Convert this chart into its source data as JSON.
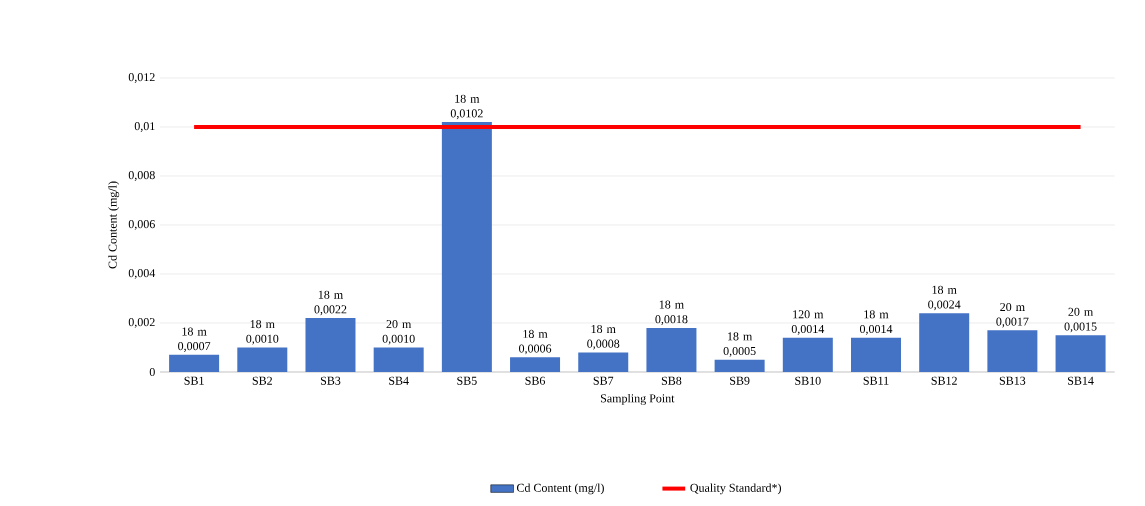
{
  "chart_data": {
    "type": "bar",
    "xlabel": "Sampling Point",
    "ylabel": "Cd Content (mg/l)",
    "categories": [
      "SB1",
      "SB2",
      "SB3",
      "SB4",
      "SB5",
      "SB6",
      "SB7",
      "SB8",
      "SB9",
      "SB10",
      "SB11",
      "SB12",
      "SB13",
      "SB14"
    ],
    "series": [
      {
        "name": "Cd Content (mg/l)",
        "color": "#4472c4",
        "values": [
          0.0007,
          0.001,
          0.0022,
          0.001,
          0.0102,
          0.0006,
          0.0008,
          0.0018,
          0.0005,
          0.0014,
          0.0014,
          0.0024,
          0.0017,
          0.0015
        ],
        "value_labels": [
          "18 m 0,0007",
          "18 m 0,0010",
          "18 m 0,0022",
          "20 m 0,0010",
          "18 m 0,0102",
          "18 m 0,0006",
          "18 m 0,0008",
          "18 m 0,0018",
          "18 m 0,0005",
          "120 m 0,0014",
          "18 m 0,0014",
          "18 m 0,0024",
          "20 m 0,0017",
          "20 m 0,0015"
        ]
      },
      {
        "name": "Quality Standard*)",
        "type": "line",
        "color": "#ff0000",
        "values": [
          0.01,
          0.01,
          0.01,
          0.01,
          0.01,
          0.01,
          0.01,
          0.01,
          0.01,
          0.01,
          0.01,
          0.01,
          0.01,
          0.01
        ]
      }
    ],
    "ylim": [
      0,
      0.012
    ],
    "yticks": [
      0,
      {
        "value": 0.002,
        "label": "0,002"
      },
      {
        "value": 0.004,
        "label": "0,004"
      },
      {
        "value": 0.006,
        "label": "0,006"
      },
      {
        "value": 0.008,
        "label": "0,008"
      },
      {
        "value": 0.01,
        "label": "0,01"
      },
      {
        "value": 0.012,
        "label": "0,012"
      }
    ],
    "grid": "y",
    "legend": "bottom"
  }
}
